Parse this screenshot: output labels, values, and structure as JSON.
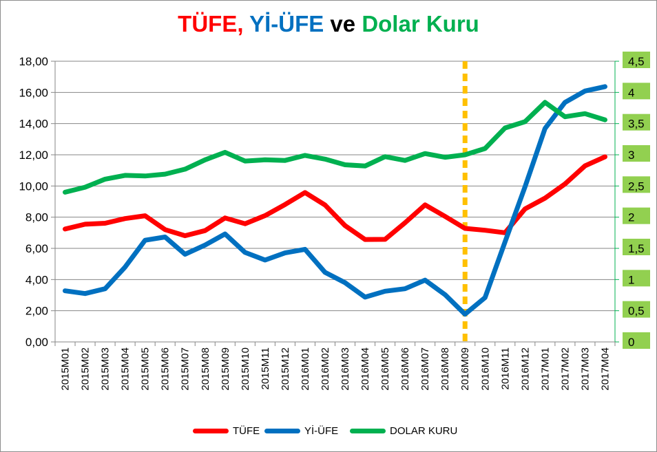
{
  "title": {
    "part1": "TÜFE,",
    "part2": "Yİ-ÜFE",
    "part3": "ve",
    "part4": "Dolar Kuru",
    "color1": "#ff0000",
    "color2": "#0070c0",
    "color3": "#000000",
    "color4": "#00b050"
  },
  "chart_data": {
    "type": "line",
    "title": "TÜFE, Yİ-ÜFE ve Dolar Kuru",
    "categories": [
      "2015M01",
      "2015M02",
      "2015M03",
      "2015M04",
      "2015M05",
      "2015M06",
      "2015M07",
      "2015M08",
      "2015M09",
      "2015M10",
      "2015M11",
      "2015M12",
      "2016M01",
      "2016M02",
      "2016M03",
      "2016M04",
      "2016M05",
      "2016M06",
      "2016M07",
      "2016M08",
      "2016M09",
      "2016M10",
      "2016M11",
      "2016M12",
      "2017M01",
      "2017M02",
      "2017M03",
      "2017M04"
    ],
    "left_axis": {
      "ylim": [
        0,
        18
      ],
      "ticks": [
        "0,00",
        "2,00",
        "4,00",
        "6,00",
        "8,00",
        "10,00",
        "12,00",
        "14,00",
        "16,00",
        "18,00"
      ]
    },
    "right_axis": {
      "ylim": [
        0,
        4.5
      ],
      "ticks": [
        "0",
        "0,5",
        "1",
        "1,5",
        "2",
        "2,5",
        "3",
        "3,5",
        "4",
        "4,5"
      ],
      "tick_background": "#92d050"
    },
    "grid": true,
    "legend_position": "bottom",
    "series": [
      {
        "name": "TÜFE",
        "axis": "left",
        "color": "#ff0000",
        "values": [
          7.24,
          7.55,
          7.61,
          7.91,
          8.09,
          7.2,
          6.81,
          7.14,
          7.95,
          7.58,
          8.1,
          8.81,
          9.58,
          8.78,
          7.46,
          6.57,
          6.58,
          7.64,
          8.79,
          8.05,
          7.28,
          7.16,
          7.0,
          8.53,
          9.22,
          10.13,
          11.29,
          11.87
        ]
      },
      {
        "name": "Yİ-ÜFE",
        "axis": "left",
        "color": "#0070c0",
        "values": [
          3.28,
          3.1,
          3.41,
          4.8,
          6.52,
          6.73,
          5.62,
          6.21,
          6.92,
          5.74,
          5.25,
          5.71,
          5.94,
          4.46,
          3.8,
          2.87,
          3.25,
          3.41,
          3.96,
          3.03,
          1.78,
          2.84,
          6.41,
          9.94,
          13.69,
          15.36,
          16.09,
          16.37
        ]
      },
      {
        "name": "DOLAR KURU",
        "axis": "right",
        "color": "#00b050",
        "values": [
          2.4,
          2.48,
          2.61,
          2.67,
          2.66,
          2.69,
          2.77,
          2.92,
          3.04,
          2.9,
          2.92,
          2.91,
          2.99,
          2.93,
          2.84,
          2.82,
          2.97,
          2.91,
          3.02,
          2.96,
          3.0,
          3.1,
          3.43,
          3.53,
          3.84,
          3.61,
          3.66,
          3.56
        ]
      }
    ],
    "annotations": [
      {
        "type": "vertical-dashed-line",
        "at_category": "2016M09",
        "color": "#ffc000"
      }
    ]
  },
  "legend": [
    {
      "label": "TÜFE",
      "color": "#ff0000"
    },
    {
      "label": "Yİ-ÜFE",
      "color": "#0070c0"
    },
    {
      "label": "DOLAR KURU",
      "color": "#00b050"
    }
  ]
}
